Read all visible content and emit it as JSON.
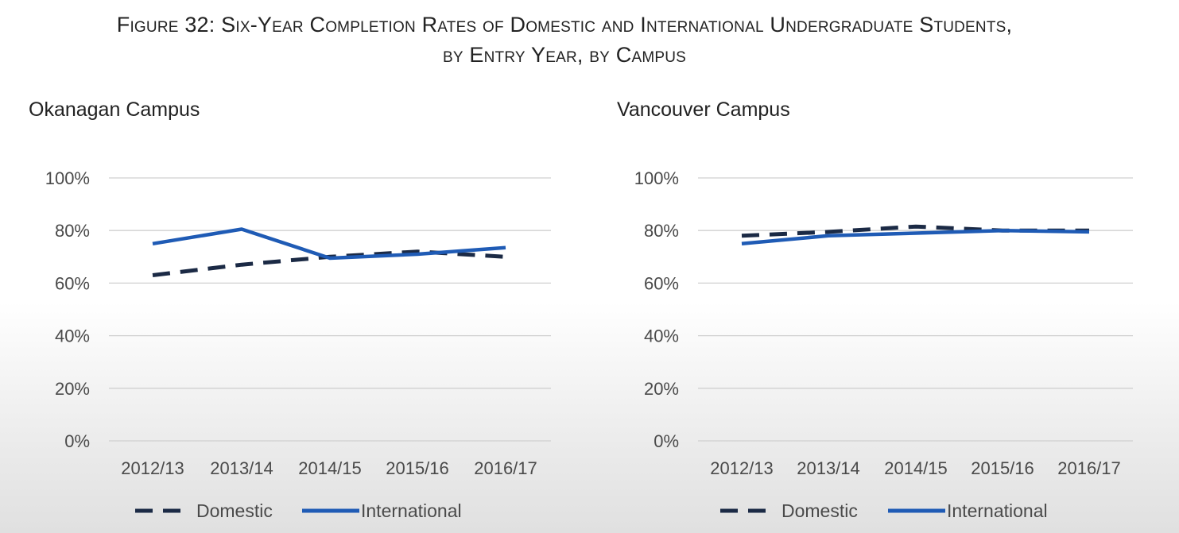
{
  "figure": {
    "title_line1": "Figure 32: Six-Year Completion Rates of Domestic and International Undergraduate Students,",
    "title_line2": "by Entry Year, by Campus"
  },
  "colors": {
    "domestic": "#1b2a45",
    "international": "#1f5bb5",
    "grid": "#d0d0d0"
  },
  "chart_data": [
    {
      "type": "line",
      "title": "Okanagan Campus",
      "categories": [
        "2012/13",
        "2013/14",
        "2014/15",
        "2015/16",
        "2016/17"
      ],
      "yticks": [
        "0%",
        "20%",
        "40%",
        "60%",
        "80%",
        "100%"
      ],
      "ylim": [
        0,
        100
      ],
      "series": [
        {
          "name": "Domestic",
          "style": "dashed",
          "values": [
            63,
            67,
            70,
            72,
            70
          ]
        },
        {
          "name": "International",
          "style": "solid",
          "values": [
            75,
            80.5,
            69.5,
            71,
            73.5
          ]
        }
      ],
      "legend": [
        "Domestic",
        "International"
      ]
    },
    {
      "type": "line",
      "title": "Vancouver Campus",
      "categories": [
        "2012/13",
        "2013/14",
        "2014/15",
        "2015/16",
        "2016/17"
      ],
      "yticks": [
        "0%",
        "20%",
        "40%",
        "60%",
        "80%",
        "100%"
      ],
      "ylim": [
        0,
        100
      ],
      "series": [
        {
          "name": "Domestic",
          "style": "dashed",
          "values": [
            78,
            79.5,
            81.5,
            80,
            80
          ]
        },
        {
          "name": "International",
          "style": "solid",
          "values": [
            75,
            78,
            79,
            80,
            79.5
          ]
        }
      ],
      "legend": [
        "Domestic",
        "International"
      ]
    }
  ]
}
